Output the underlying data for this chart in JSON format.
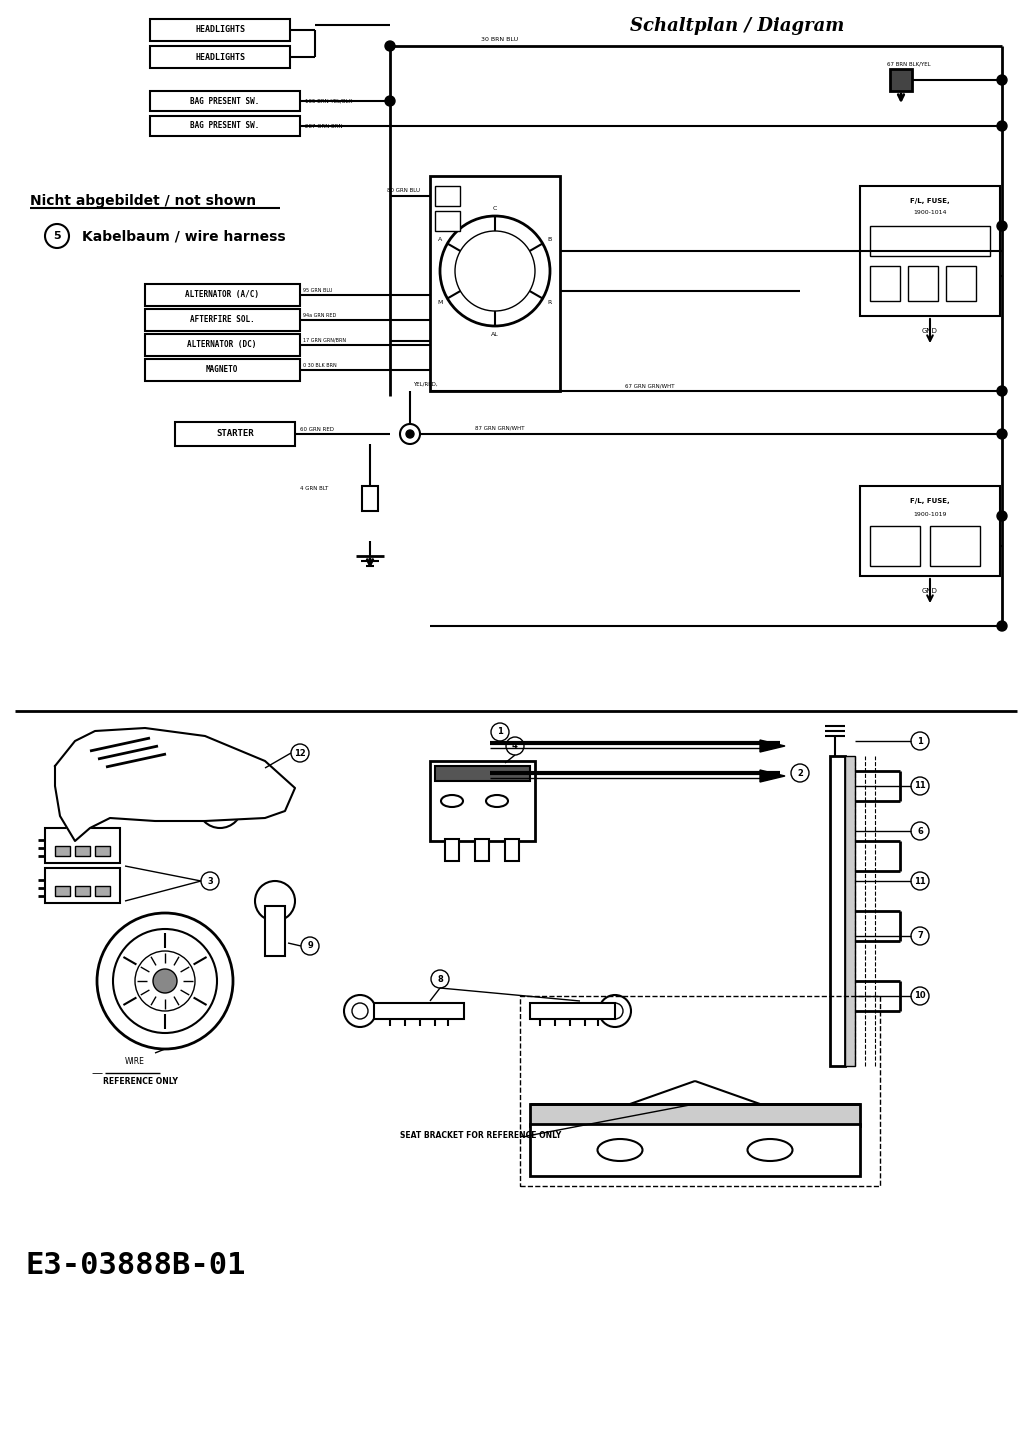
{
  "title": "Schaltplan / Diagram",
  "diagram_label": "E3-03888B-01",
  "bg_color": "#ffffff",
  "line_color": "#000000",
  "fig_width": 10.32,
  "fig_height": 14.46,
  "dpi": 100,
  "not_shown_text": "Nicht abgebildet / not shown",
  "wire_harness_num": "5",
  "wire_harness_text": "Kabelbaum / wire harness",
  "seat_bracket_text": "SEAT BRACKET FOR REFERENCE ONLY",
  "reference_only_text": "REFERENCE ONLY",
  "headlight1": "HEADLIGHTS",
  "headlight2": "HEADLIGHTS",
  "bag_present1": "BAG PRESENT SW.",
  "bag_present2": "BAG PRESENT SW.",
  "alternator_ac": "ALTERNATOR (A/C)",
  "afterfire": "AFTERFIRE SOL.",
  "alternator_dc": "ALTERNATOR (DC)",
  "magneto": "MAGNETO",
  "starter": "STARTER"
}
